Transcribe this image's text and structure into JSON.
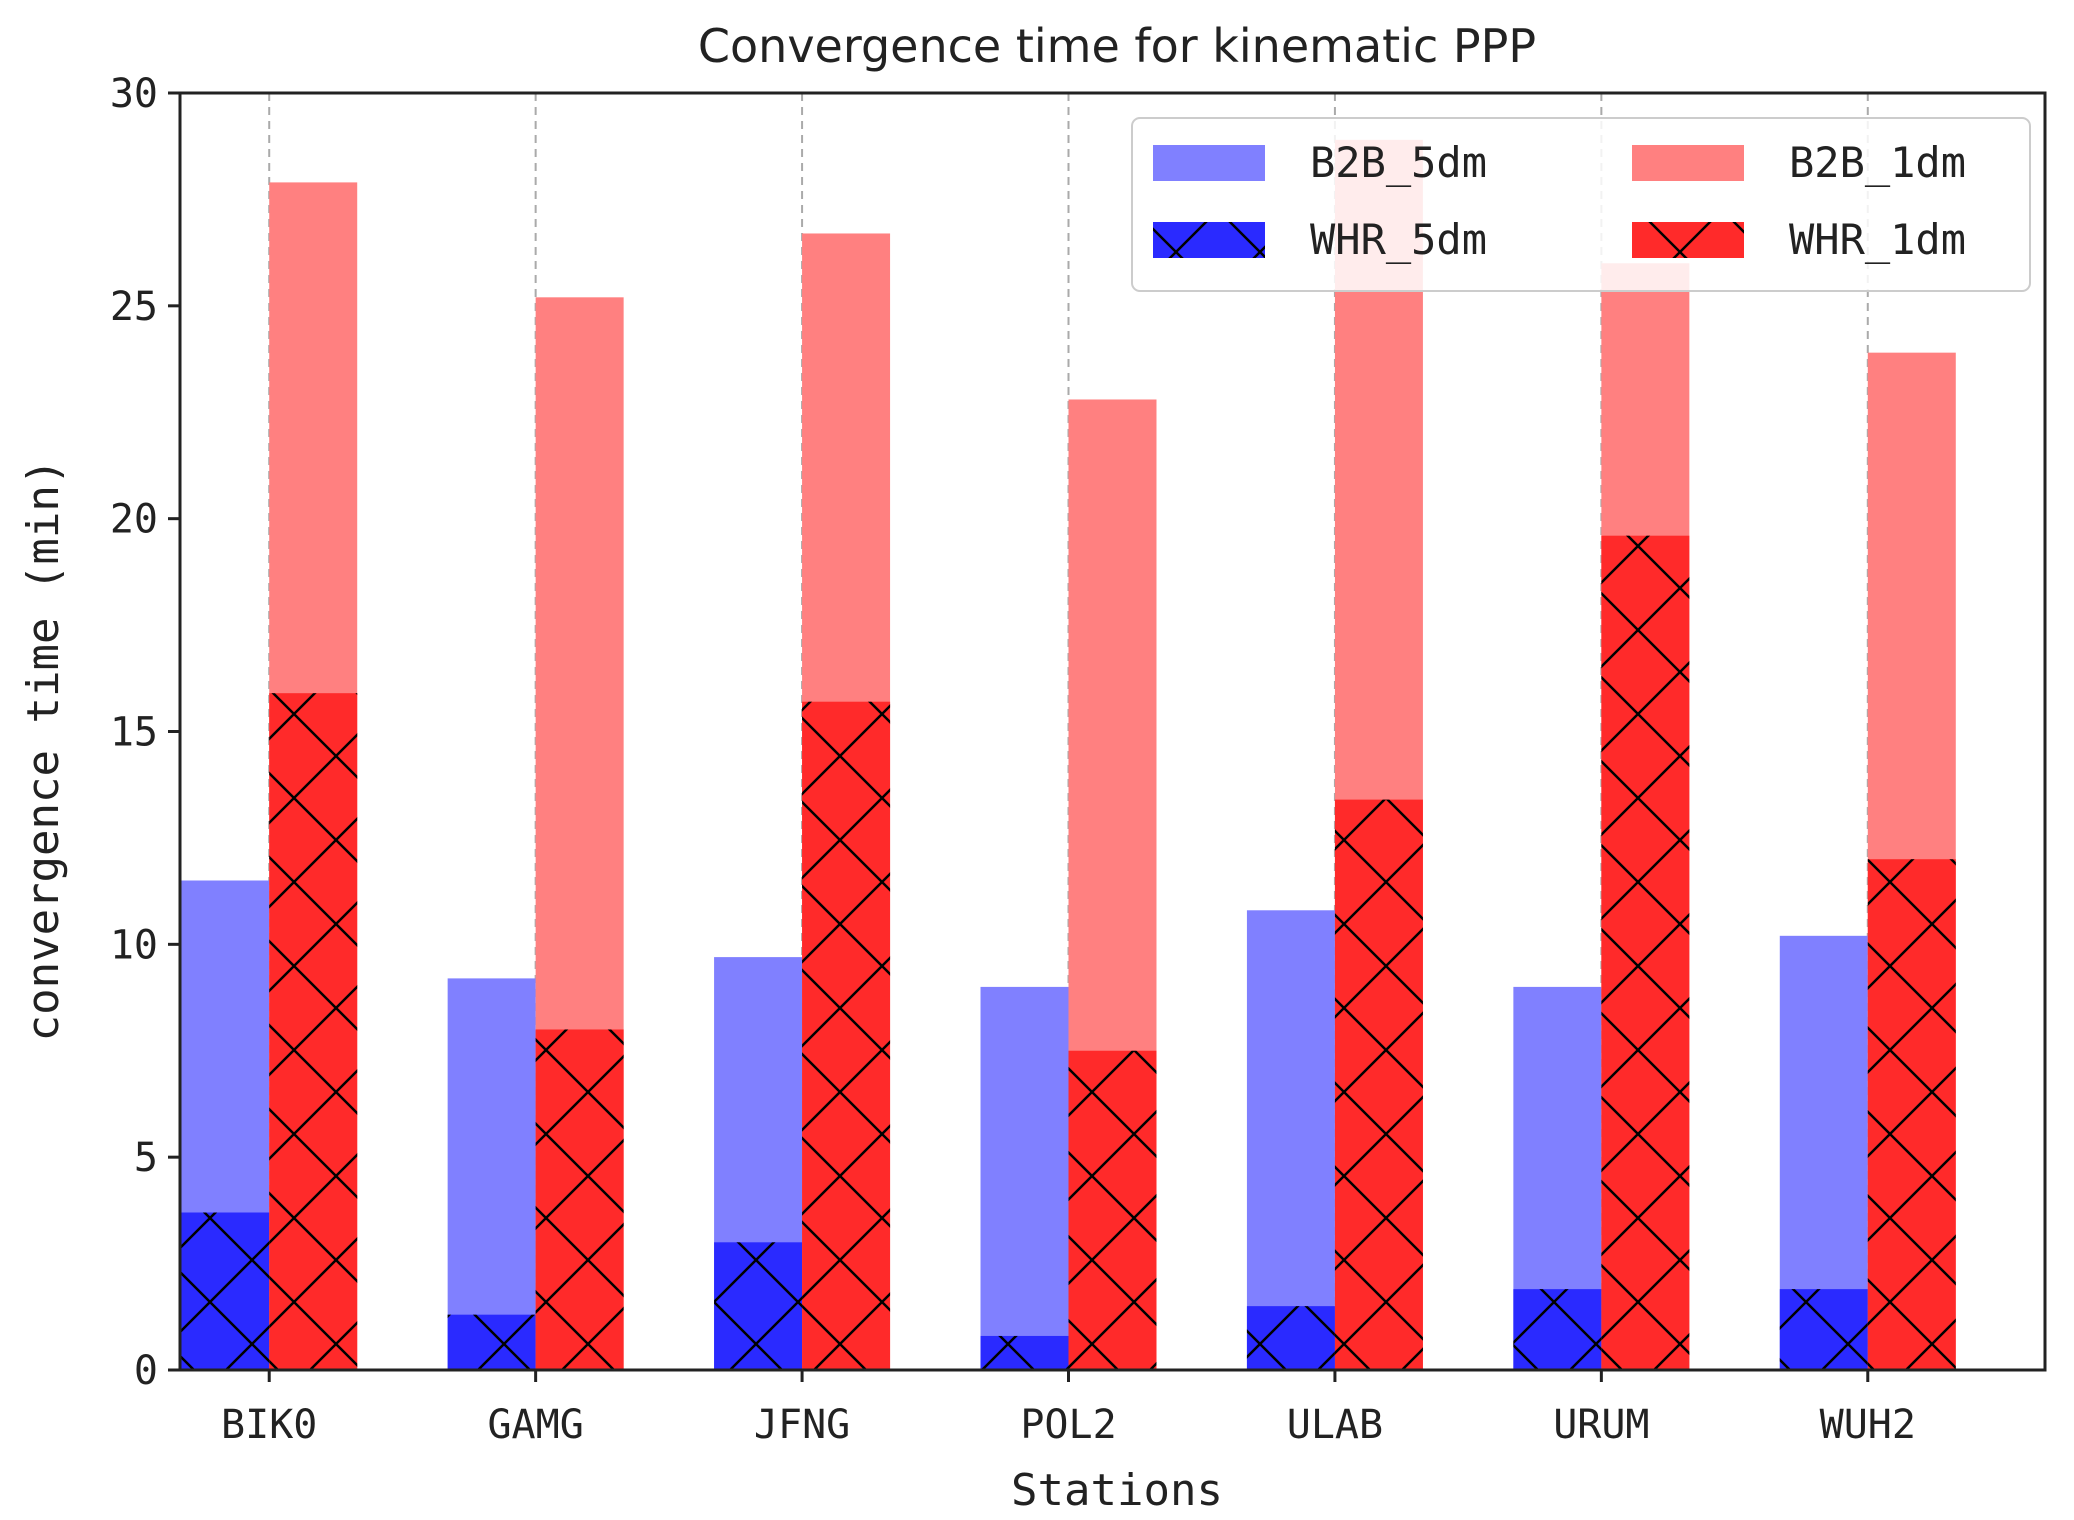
{
  "chart_data": {
    "type": "bar",
    "title": "Convergence time for kinematic PPP",
    "xlabel": "Stations",
    "ylabel": "convergence time (min)",
    "ylim": [
      0,
      30
    ],
    "yticks": [
      0,
      5,
      10,
      15,
      20,
      25,
      30
    ],
    "grid": "vertical dashed at category centers",
    "legend_position": "top-right",
    "categories": [
      "BIK0",
      "GAMG",
      "JFNG",
      "POL2",
      "ULAB",
      "URUM",
      "WUH2"
    ],
    "series": [
      {
        "name": "B2B_5dm",
        "group": "5dm",
        "layer": "back",
        "hatch": false,
        "color": "#8080ff",
        "values": [
          11.5,
          9.2,
          9.7,
          9.0,
          10.8,
          9.0,
          10.2
        ]
      },
      {
        "name": "WHR_5dm",
        "group": "5dm",
        "layer": "front",
        "hatch": true,
        "color": "#2a2aff",
        "values": [
          3.7,
          1.3,
          3.0,
          0.8,
          1.5,
          1.9,
          1.9
        ]
      },
      {
        "name": "B2B_1dm",
        "group": "1dm",
        "layer": "back",
        "hatch": false,
        "color": "#ff8080",
        "values": [
          27.9,
          25.2,
          26.7,
          22.8,
          28.9,
          26.0,
          23.9
        ]
      },
      {
        "name": "WHR_1dm",
        "group": "1dm",
        "layer": "front",
        "hatch": true,
        "color": "#ff2a2a",
        "values": [
          15.9,
          8.0,
          15.7,
          7.5,
          13.4,
          19.6,
          12.0
        ]
      }
    ]
  }
}
